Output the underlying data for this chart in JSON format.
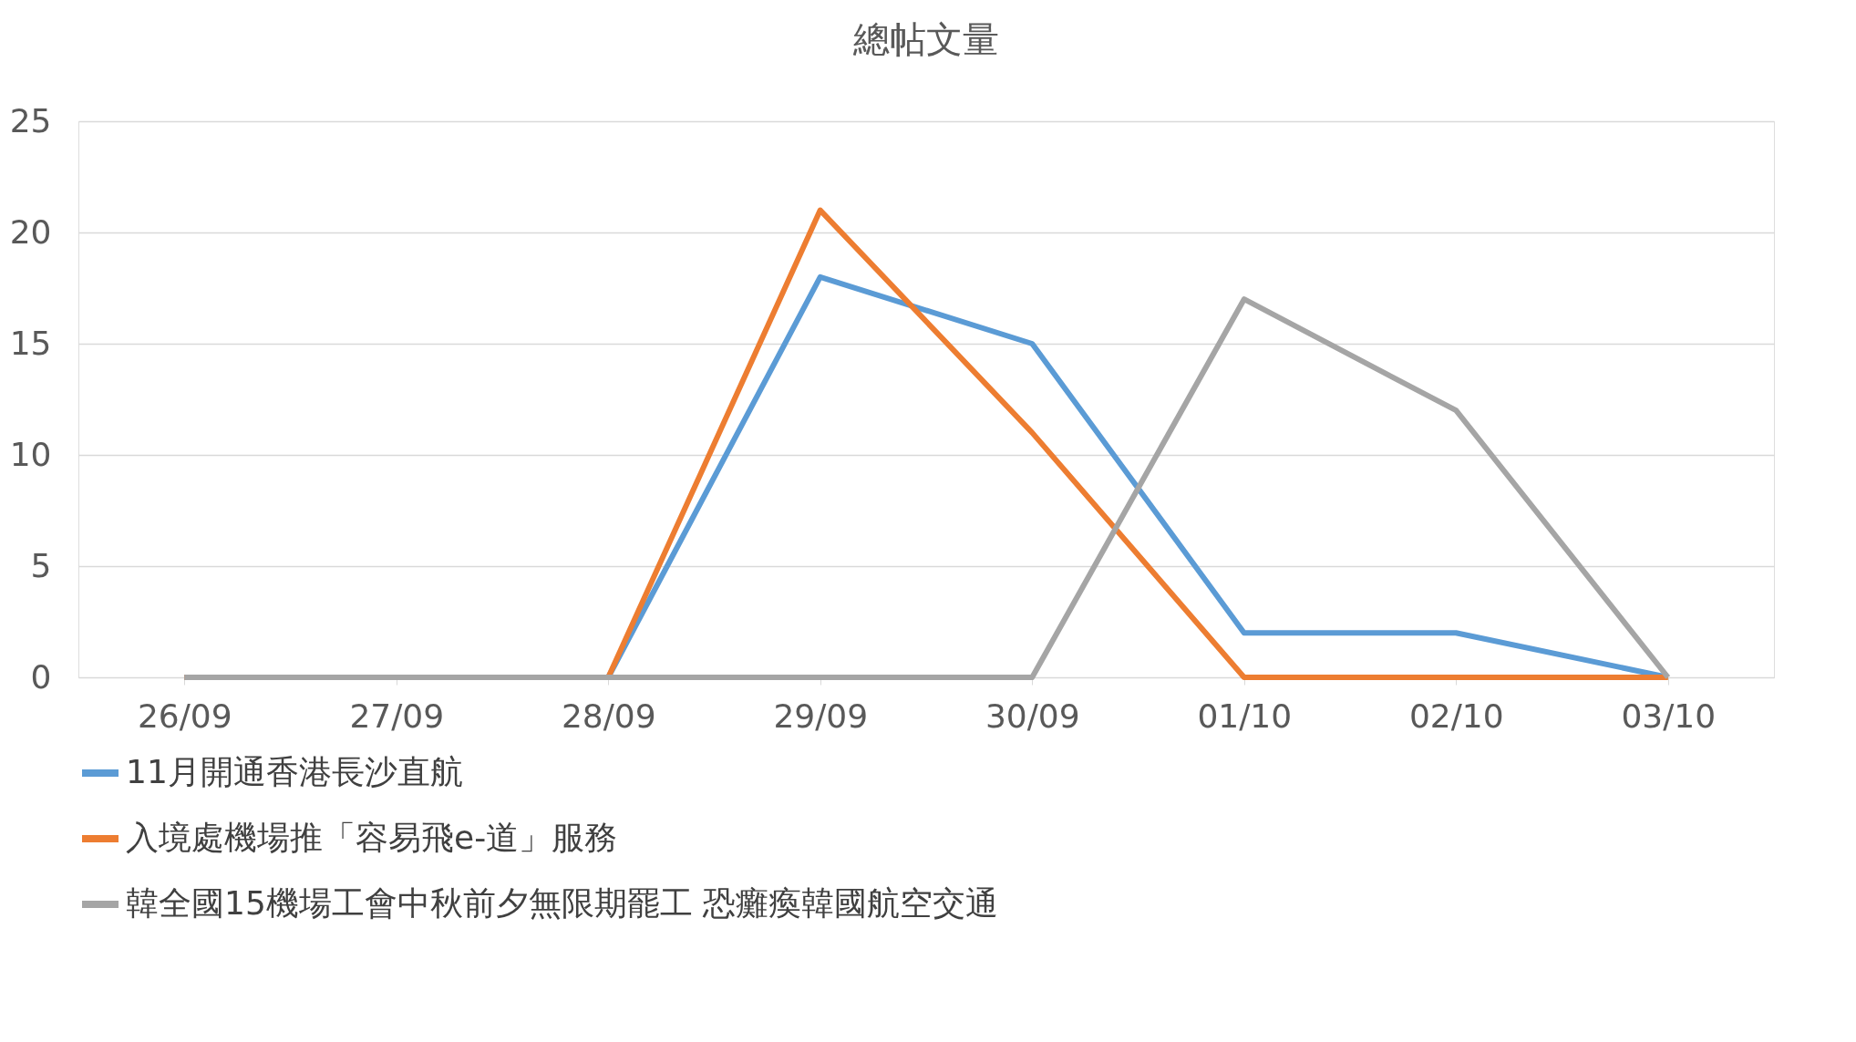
{
  "chart_data": {
    "type": "line",
    "title": "總帖文量",
    "categories": [
      "26/09",
      "27/09",
      "28/09",
      "29/09",
      "30/09",
      "01/10",
      "02/10",
      "03/10"
    ],
    "series": [
      {
        "name": "11月開通香港長沙直航",
        "color": "#5b9bd5",
        "values": [
          0,
          0,
          0,
          18,
          15,
          2,
          2,
          0
        ]
      },
      {
        "name": "入境處機場推「容易飛e-道」服務",
        "color": "#ed7d31",
        "values": [
          0,
          0,
          0,
          21,
          11,
          0,
          0,
          0
        ]
      },
      {
        "name": "韓全國15機場工會中秋前夕無限期罷工 恐癱瘓韓國航空交通",
        "color": "#a5a5a5",
        "values": [
          0,
          0,
          0,
          0,
          0,
          17,
          12,
          0
        ]
      }
    ],
    "ylim": [
      0,
      25
    ],
    "yticks": [
      0,
      5,
      10,
      15,
      20,
      25
    ],
    "grid": "y",
    "legend": "bottom",
    "marker": "none",
    "line_style": "solid"
  }
}
